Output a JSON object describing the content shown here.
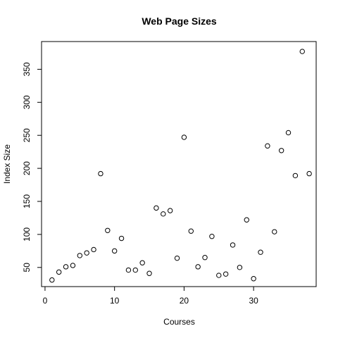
{
  "chart_data": {
    "type": "scatter",
    "title": "Web Page Sizes",
    "xlabel": "Courses",
    "ylabel": "Index Size",
    "xlim": [
      -0.5,
      39
    ],
    "ylim": [
      21,
      392
    ],
    "xticks": [
      0,
      10,
      20,
      30
    ],
    "yticks": [
      50,
      100,
      150,
      200,
      250,
      300,
      350
    ],
    "grid": false,
    "x": [
      1,
      2,
      3,
      4,
      5,
      6,
      7,
      8,
      9,
      10,
      11,
      12,
      13,
      14,
      15,
      16,
      17,
      18,
      19,
      20,
      21,
      22,
      23,
      24,
      25,
      26,
      27,
      28,
      29,
      30,
      31,
      32,
      33,
      34,
      35,
      36,
      37,
      38
    ],
    "y": [
      31,
      43,
      51,
      53,
      68,
      72,
      77,
      192,
      106,
      75,
      94,
      46,
      46,
      57,
      41,
      140,
      131,
      136,
      64,
      247,
      105,
      51,
      65,
      97,
      38,
      40,
      84,
      50,
      122,
      33,
      73,
      234,
      104,
      227,
      254,
      189,
      377,
      192
    ]
  }
}
